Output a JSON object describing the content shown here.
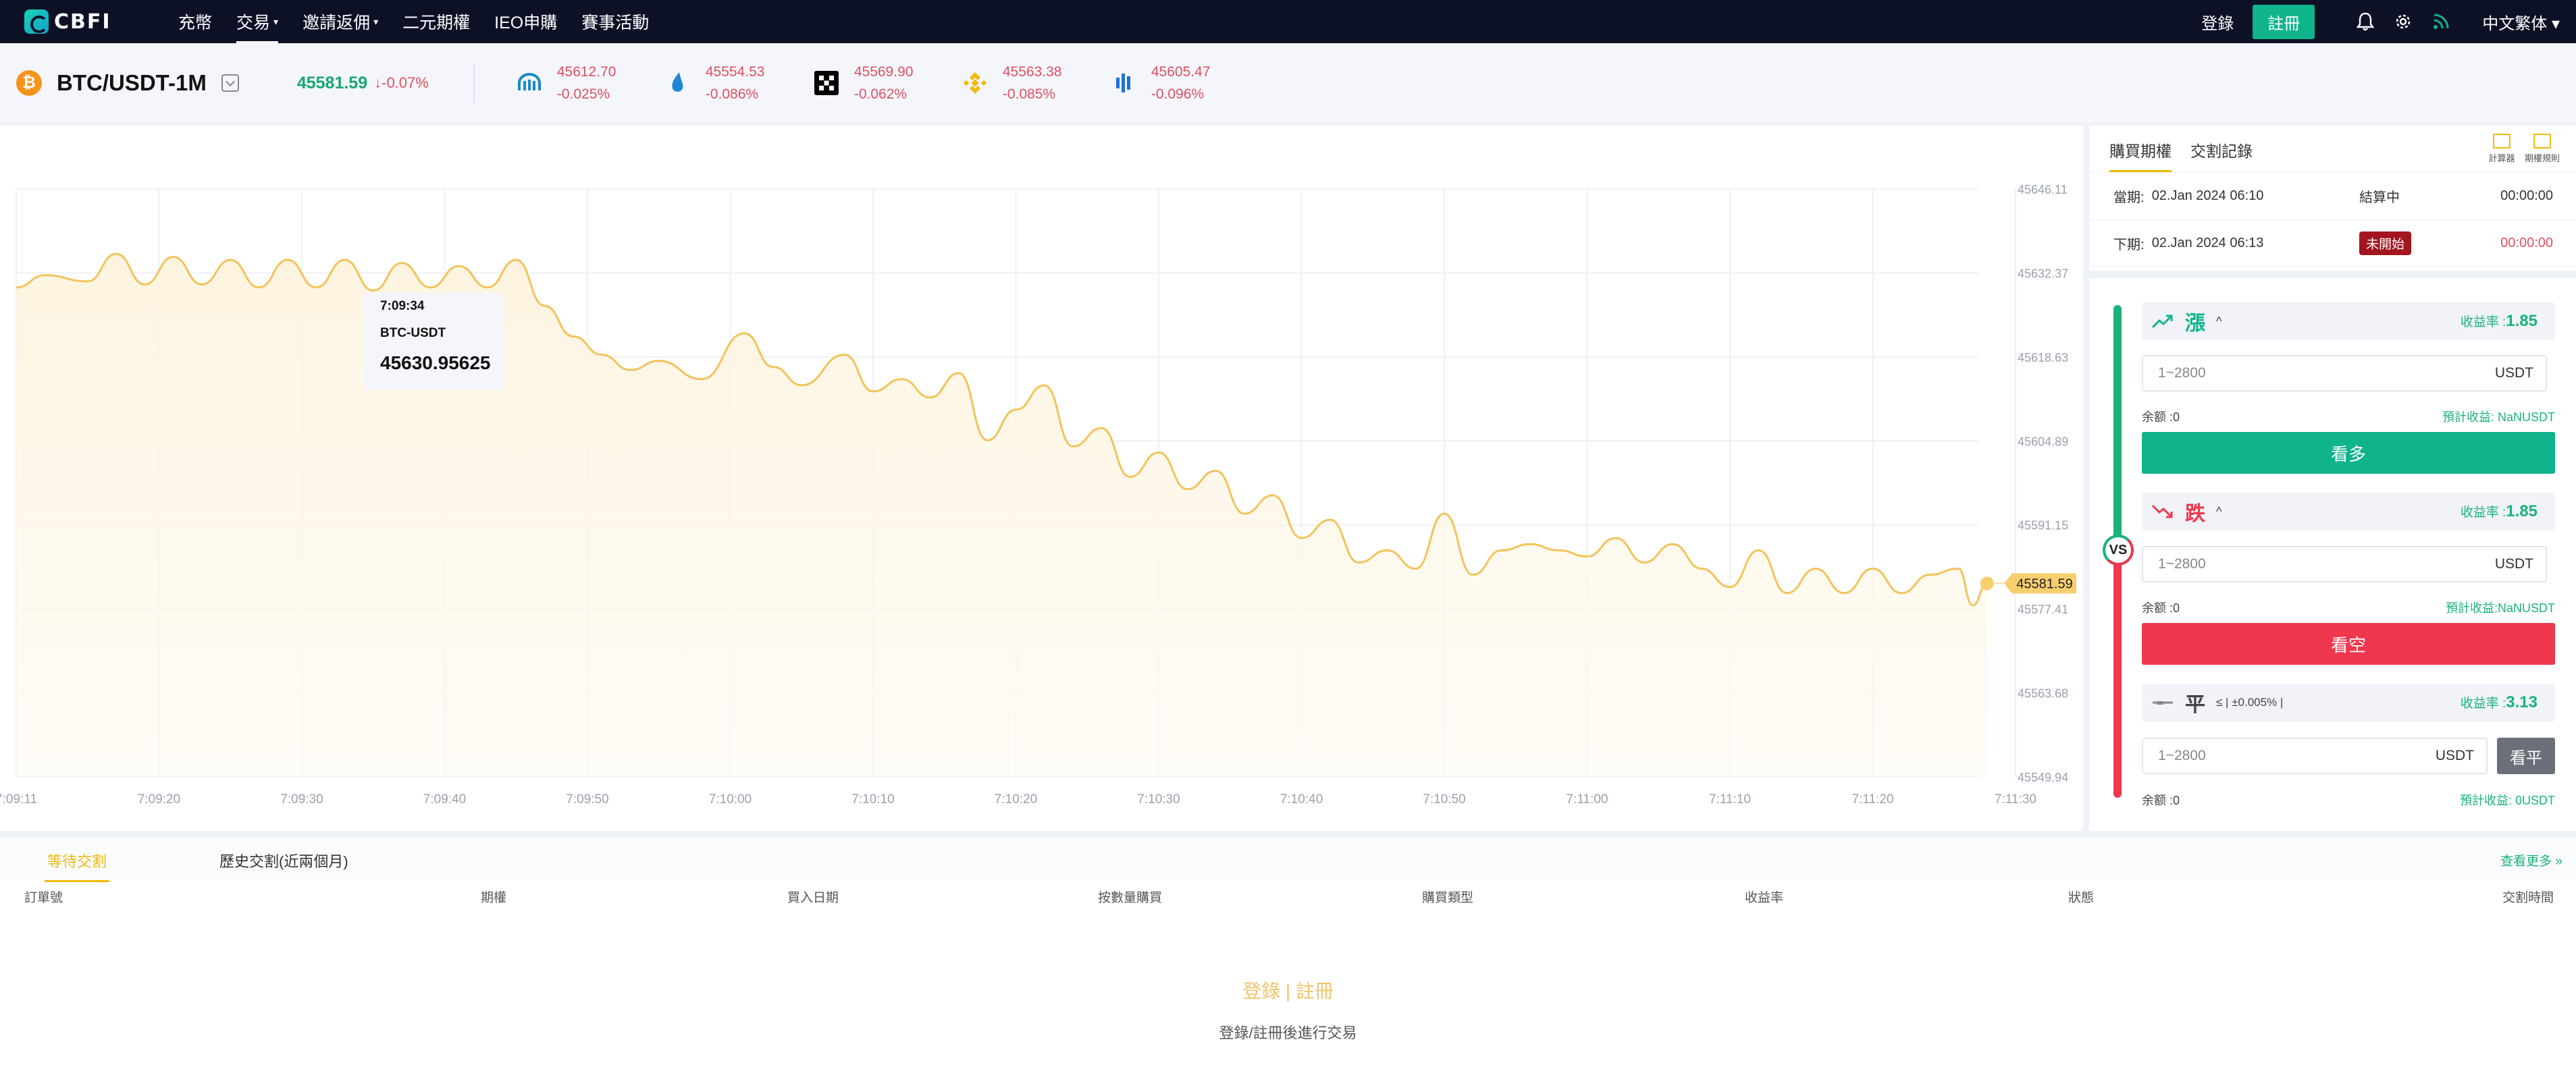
{
  "nav": {
    "logo": "CBFI",
    "items": [
      {
        "label": "充幣",
        "caret": ""
      },
      {
        "label": "交易",
        "caret": "▾"
      },
      {
        "label": "邀請返佣",
        "caret": "▾"
      },
      {
        "label": "二元期權",
        "caret": ""
      },
      {
        "label": "IEO申購",
        "caret": ""
      },
      {
        "label": "賽事活動",
        "caret": ""
      }
    ],
    "login": "登錄",
    "register": "註冊",
    "lang": "中文繁体 ▾"
  },
  "ticker": {
    "btc_symbol": "₿",
    "pair": "BTC/USDT-1M",
    "price": "45581.59",
    "change": "↓-0.07%",
    "exchanges": [
      {
        "icon": "kraken-icon",
        "price": "45612.70",
        "change": "-0.025%"
      },
      {
        "icon": "bitstamp-icon",
        "price": "45554.53",
        "change": "-0.086%"
      },
      {
        "icon": "okx-icon",
        "price": "45569.90",
        "change": "-0.062%"
      },
      {
        "icon": "binance-icon",
        "price": "45563.38",
        "change": "-0.085%"
      },
      {
        "icon": "bitfinex-icon",
        "price": "45605.47",
        "change": "-0.096%"
      }
    ]
  },
  "chart_data": {
    "type": "area",
    "x_ticks": [
      "7:09:11",
      "7:09:20",
      "7:09:30",
      "7:09:40",
      "7:09:50",
      "7:10:00",
      "7:10:10",
      "7:10:20",
      "7:10:30",
      "7:10:40",
      "7:10:50",
      "7:11:00",
      "7:11:10",
      "7:11:20",
      "7:11:30"
    ],
    "y_ticks": [
      "45646.11",
      "45632.37",
      "45618.63",
      "45604.89",
      "45591.15",
      "45577.41",
      "45563.68",
      "45549.94"
    ],
    "ylim": [
      45549.94,
      45646.11
    ],
    "xlim_seconds": [
      0,
      139
    ],
    "series": [
      {
        "points": [
          [
            0,
            45630.0
          ],
          [
            2,
            45632.0
          ],
          [
            5,
            45631.0
          ],
          [
            7,
            45635.5
          ],
          [
            9,
            45630.5
          ],
          [
            11,
            45635.0
          ],
          [
            13,
            45630.5
          ],
          [
            15,
            45634.5
          ],
          [
            17,
            45630.0
          ],
          [
            19,
            45634.5
          ],
          [
            21,
            45630.0
          ],
          [
            23,
            45634.5
          ],
          [
            25,
            45629.5
          ],
          [
            27,
            45634.0
          ],
          [
            29,
            45630.0
          ],
          [
            31,
            45633.5
          ],
          [
            33,
            45630.0
          ],
          [
            35,
            45634.5
          ],
          [
            37,
            45627.0
          ],
          [
            39,
            45622.0
          ],
          [
            41,
            45619.0
          ],
          [
            43,
            45616.5
          ],
          [
            45,
            45618.0
          ],
          [
            48,
            45615.0
          ],
          [
            51,
            45622.5
          ],
          [
            53,
            45617.0
          ],
          [
            55,
            45614.0
          ],
          [
            58,
            45619.0
          ],
          [
            60,
            45613.0
          ],
          [
            62,
            45615.0
          ],
          [
            64,
            45612.0
          ],
          [
            66,
            45616.0
          ],
          [
            68,
            45605.0
          ],
          [
            70,
            45610.0
          ],
          [
            72,
            45614.0
          ],
          [
            74,
            45604.0
          ],
          [
            76,
            45607.0
          ],
          [
            78,
            45599.0
          ],
          [
            80,
            45603.0
          ],
          [
            82,
            45597.0
          ],
          [
            84,
            45600.0
          ],
          [
            86,
            45593.0
          ],
          [
            88,
            45596.0
          ],
          [
            90,
            45589.0
          ],
          [
            92,
            45592.0
          ],
          [
            94,
            45585.0
          ],
          [
            96,
            45587.0
          ],
          [
            98,
            45584.0
          ],
          [
            100,
            45593.0
          ],
          [
            102,
            45583.0
          ],
          [
            104,
            45587.0
          ],
          [
            106,
            45588.0
          ],
          [
            108,
            45587.0
          ],
          [
            110,
            45586.0
          ],
          [
            112,
            45589.0
          ],
          [
            114,
            45585.0
          ],
          [
            116,
            45588.0
          ],
          [
            118,
            45584.0
          ],
          [
            120,
            45581.0
          ],
          [
            122,
            45587.0
          ],
          [
            124,
            45580.0
          ],
          [
            126,
            45584.0
          ],
          [
            128,
            45580.0
          ],
          [
            130,
            45584.0
          ],
          [
            132,
            45580.0
          ],
          [
            134,
            45583.0
          ],
          [
            136,
            45584.0
          ],
          [
            137,
            45578.0
          ],
          [
            138,
            45581.59
          ]
        ]
      }
    ],
    "last_value": "45581.59",
    "tooltip": {
      "time": "7:09:34",
      "symbol": "BTC-USDT",
      "value": "45630.95625"
    }
  },
  "right_panel": {
    "tab_active": "購買期權",
    "tab_other": "交割記錄",
    "tool1": "計算器",
    "tool2": "期權規則",
    "current": {
      "label": "當期:",
      "date": "02.Jan 2024 06:10",
      "status": "結算中",
      "time": "00:00:00"
    },
    "next": {
      "label": "下期:",
      "date": "02.Jan 2024 06:13",
      "status": "未開始",
      "time": "00:00:00"
    },
    "vs": "VS",
    "up": {
      "label": "漲",
      "yield_label": "收益率 :",
      "yield": "1.85",
      "placeholder": "1~2800",
      "unit": "USDT",
      "balance": "余额 :0",
      "est": "預計收益: NaNUSDT",
      "button": "看多"
    },
    "down": {
      "label": "跌",
      "yield_label": "收益率 :",
      "yield": "1.85",
      "placeholder": "1~2800",
      "unit": "USDT",
      "balance": "余额 :0",
      "est": "預計收益:NaNUSDT",
      "button": "看空"
    },
    "flat": {
      "label": "平",
      "range": "≤ | ±0.005% |",
      "yield_label": "收益率 :",
      "yield": "3.13",
      "placeholder": "1~2800",
      "unit": "USDT",
      "button": "看平",
      "balance": "余额 :0",
      "est": "預計收益: 0USDT"
    }
  },
  "bottom": {
    "tab_active": "等待交割",
    "tab_other": "歷史交割(近兩個月)",
    "more": "查看更多 »",
    "columns": [
      "訂單號",
      "期權",
      "買入日期",
      "按數量購買",
      "購買類型",
      "收益率",
      "狀態",
      "交割時間"
    ],
    "empty_title": "登錄 | 註冊",
    "empty_sub": "登錄/註冊後進行交易"
  },
  "colors": {
    "up": "#0fb38c",
    "down": "#f0374d",
    "accent": "#f0b90b",
    "line": "#f3c35a"
  }
}
